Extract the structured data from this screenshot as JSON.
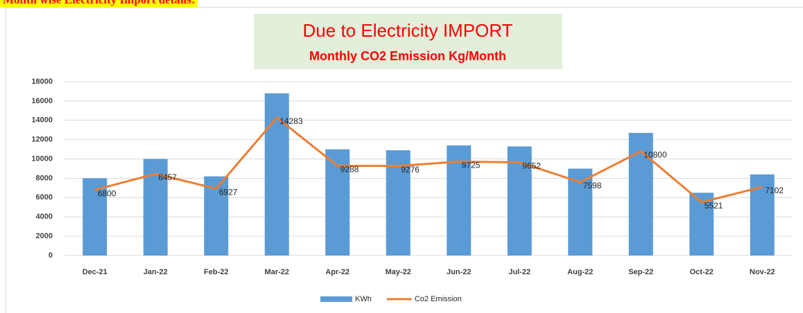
{
  "header": {
    "title": "Month wise Electricity Import details:"
  },
  "chart_data": {
    "type": "bar",
    "title": "Due to Electricity IMPORT",
    "subtitle": "Monthly CO2 Emission Kg/Month",
    "categories": [
      "Dec-21",
      "Jan-22",
      "Feb-22",
      "Mar-22",
      "Apr-22",
      "May-22",
      "Jun-22",
      "Jul-22",
      "Aug-22",
      "Sep-22",
      "Oct-22",
      "Nov-22"
    ],
    "series": [
      {
        "name": "KWh",
        "type": "bar",
        "color": "#5b9bd5",
        "values": [
          8000,
          10000,
          8200,
          16800,
          11000,
          10900,
          11400,
          11300,
          9000,
          12700,
          6500,
          8400
        ]
      },
      {
        "name": "Co2 Emission",
        "type": "line",
        "color": "#ed7d31",
        "values": [
          6800,
          8457,
          6927,
          14283,
          9288,
          9276,
          9725,
          9652,
          7598,
          10800,
          5521,
          7102
        ],
        "data_labels": true
      }
    ],
    "ylim": [
      0,
      18000
    ],
    "yticks": [
      0,
      2000,
      4000,
      6000,
      8000,
      10000,
      12000,
      14000,
      16000,
      18000
    ],
    "grid": true,
    "legend": "bottom"
  }
}
